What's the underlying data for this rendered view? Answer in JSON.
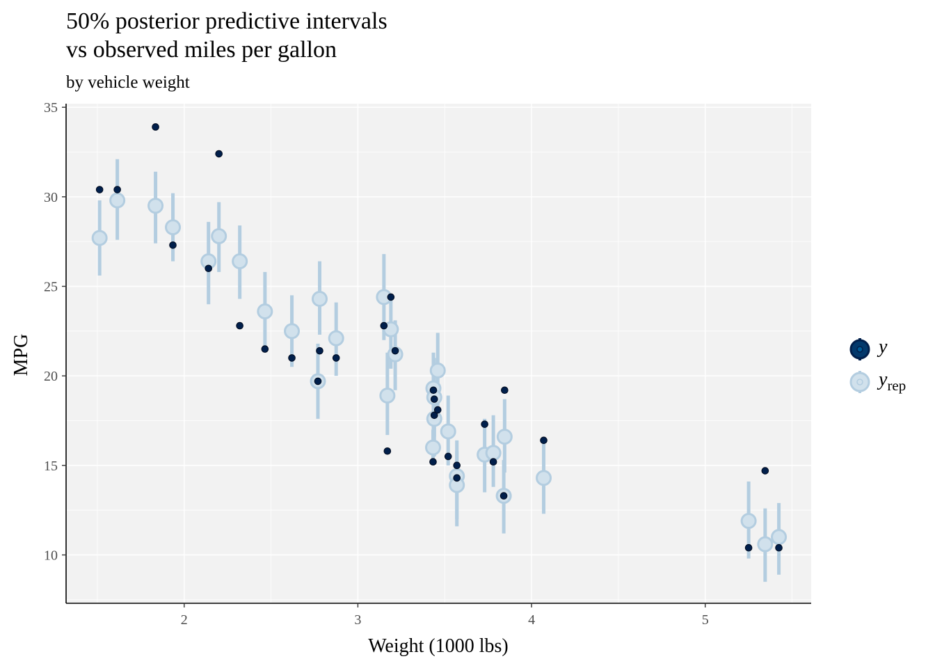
{
  "chart_data": {
    "type": "scatter",
    "title_line1": "50% posterior predictive intervals",
    "title_line2": "vs observed miles per gallon",
    "subtitle": "by vehicle weight",
    "xlabel": "Weight (1000 lbs)",
    "ylabel": "MPG",
    "xlim": [
      1.32,
      5.61
    ],
    "ylim": [
      7.3,
      35.2
    ],
    "x_ticks": [
      2,
      3,
      4,
      5
    ],
    "y_ticks": [
      10,
      15,
      20,
      25,
      30,
      35
    ],
    "legend": {
      "y_label": "y",
      "yrep_label": "y",
      "yrep_sub": "rep"
    },
    "colors": {
      "y": "#011f4b",
      "yrep_fill": "#d1e1ec",
      "yrep_stroke": "#b3cde0",
      "panel": "#f2f2f2",
      "grid": "#ffffff"
    },
    "points": [
      {
        "x": 1.513,
        "y": 30.4,
        "yrep": 27.7,
        "lo": 25.6,
        "hi": 29.8
      },
      {
        "x": 1.615,
        "y": 30.4,
        "yrep": 29.8,
        "lo": 27.6,
        "hi": 32.1
      },
      {
        "x": 1.835,
        "y": 33.9,
        "yrep": 29.5,
        "lo": 27.4,
        "hi": 31.4
      },
      {
        "x": 1.935,
        "y": 27.3,
        "yrep": 28.3,
        "lo": 26.4,
        "hi": 30.2
      },
      {
        "x": 2.14,
        "y": 26.0,
        "yrep": 26.4,
        "lo": 24.0,
        "hi": 28.6
      },
      {
        "x": 2.2,
        "y": 32.4,
        "yrep": 27.8,
        "lo": 25.8,
        "hi": 29.7
      },
      {
        "x": 2.32,
        "y": 22.8,
        "yrep": 26.4,
        "lo": 24.3,
        "hi": 28.4
      },
      {
        "x": 2.465,
        "y": 21.5,
        "yrep": 23.6,
        "lo": 21.5,
        "hi": 25.8
      },
      {
        "x": 2.62,
        "y": 21.0,
        "yrep": 22.5,
        "lo": 20.5,
        "hi": 24.5
      },
      {
        "x": 2.77,
        "y": 19.7,
        "yrep": 19.7,
        "lo": 17.6,
        "hi": 21.8
      },
      {
        "x": 2.78,
        "y": 21.4,
        "yrep": 24.3,
        "lo": 22.3,
        "hi": 26.4
      },
      {
        "x": 2.875,
        "y": 21.0,
        "yrep": 22.1,
        "lo": 20.0,
        "hi": 24.1
      },
      {
        "x": 3.15,
        "y": 22.8,
        "yrep": 24.4,
        "lo": 22.0,
        "hi": 26.8
      },
      {
        "x": 3.17,
        "y": 15.8,
        "yrep": 18.9,
        "lo": 16.7,
        "hi": 21.3
      },
      {
        "x": 3.19,
        "y": 24.4,
        "yrep": 22.6,
        "lo": 20.4,
        "hi": 24.5
      },
      {
        "x": 3.215,
        "y": 21.4,
        "yrep": 21.2,
        "lo": 19.2,
        "hi": 23.1
      },
      {
        "x": 3.435,
        "y": 19.2,
        "yrep": 19.3,
        "lo": 17.0,
        "hi": 21.3
      },
      {
        "x": 3.44,
        "y": 18.7,
        "yrep": 18.8,
        "lo": 16.6,
        "hi": 21.0
      },
      {
        "x": 3.44,
        "y": 17.8,
        "yrep": 17.6,
        "lo": 15.5,
        "hi": 19.5
      },
      {
        "x": 3.433,
        "y": 15.2,
        "yrep": 16.0,
        "lo": 15.0,
        "hi": 17.0
      },
      {
        "x": 3.46,
        "y": 18.1,
        "yrep": 20.3,
        "lo": 18.3,
        "hi": 22.4
      },
      {
        "x": 3.52,
        "y": 15.5,
        "yrep": 16.9,
        "lo": 15.0,
        "hi": 18.9
      },
      {
        "x": 3.57,
        "y": 14.3,
        "yrep": 14.4,
        "lo": 12.0,
        "hi": 16.4
      },
      {
        "x": 3.57,
        "y": 15.0,
        "yrep": 13.9,
        "lo": 11.6,
        "hi": 15.8
      },
      {
        "x": 3.73,
        "y": 17.3,
        "yrep": 15.6,
        "lo": 13.5,
        "hi": 17.6
      },
      {
        "x": 3.78,
        "y": 15.2,
        "yrep": 15.7,
        "lo": 13.8,
        "hi": 17.8
      },
      {
        "x": 3.84,
        "y": 13.3,
        "yrep": 13.3,
        "lo": 11.2,
        "hi": 15.3
      },
      {
        "x": 3.845,
        "y": 19.2,
        "yrep": 16.6,
        "lo": 14.6,
        "hi": 18.7
      },
      {
        "x": 4.07,
        "y": 16.4,
        "yrep": 14.3,
        "lo": 12.3,
        "hi": 16.3
      },
      {
        "x": 5.25,
        "y": 10.4,
        "yrep": 11.9,
        "lo": 9.8,
        "hi": 14.1
      },
      {
        "x": 5.345,
        "y": 14.7,
        "yrep": 10.6,
        "lo": 8.5,
        "hi": 12.6
      },
      {
        "x": 5.424,
        "y": 10.4,
        "yrep": 11.0,
        "lo": 8.9,
        "hi": 12.9
      }
    ]
  }
}
